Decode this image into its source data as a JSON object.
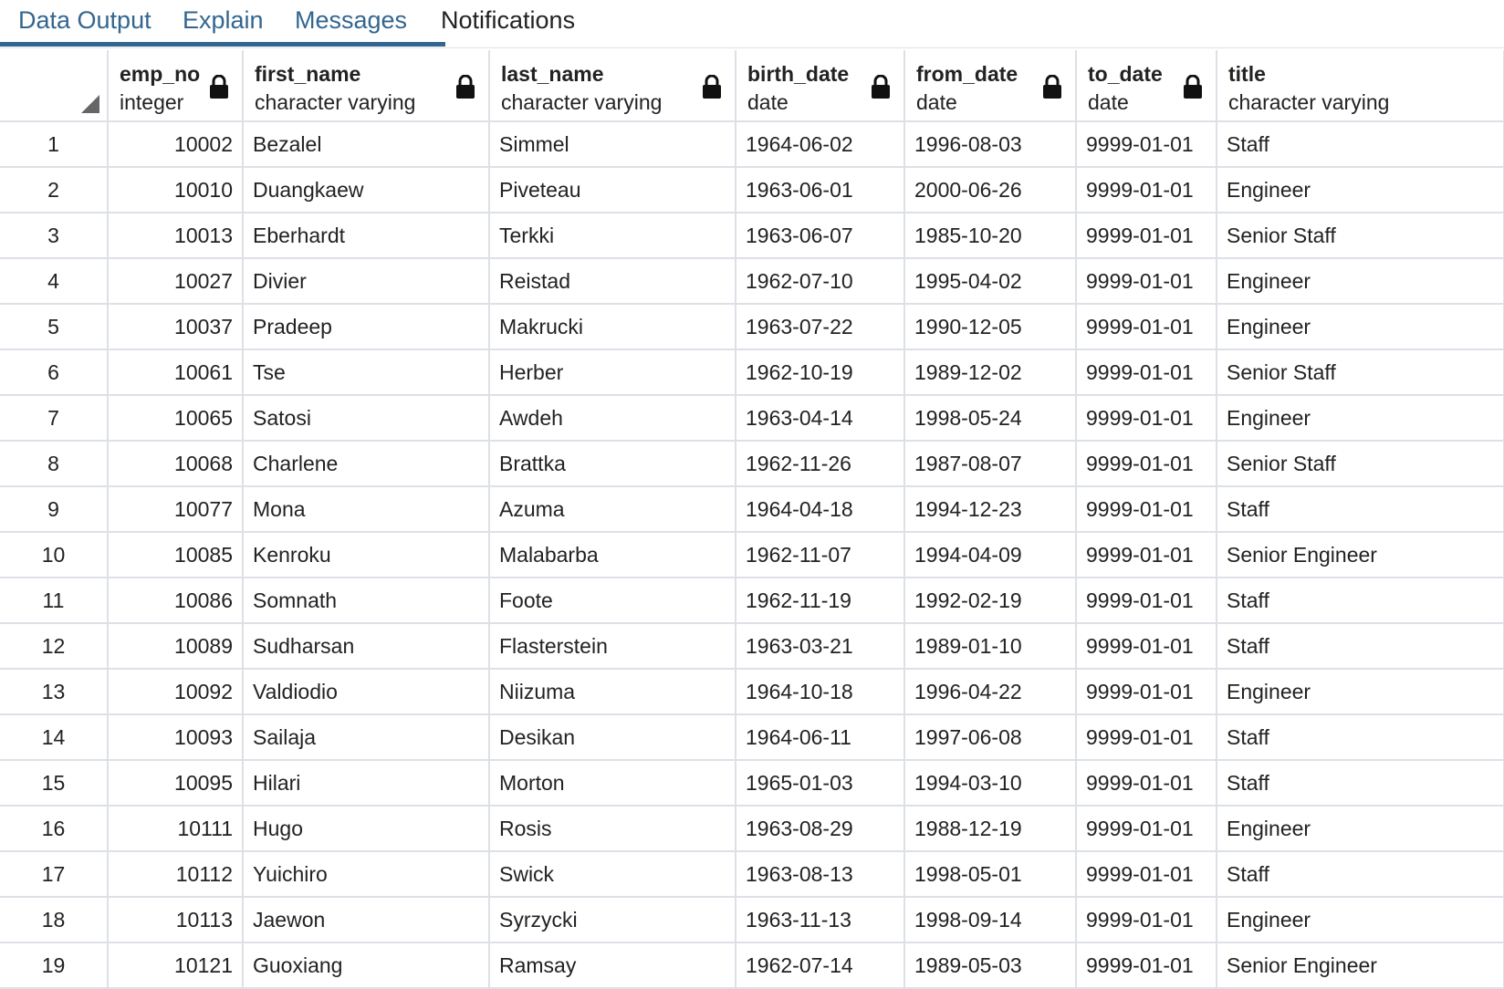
{
  "tabs": [
    {
      "label": "Data Output"
    },
    {
      "label": "Explain"
    },
    {
      "label": "Messages"
    },
    {
      "label": "Notifications"
    }
  ],
  "columns": [
    {
      "name": "emp_no",
      "type": "integer"
    },
    {
      "name": "first_name",
      "type": "character varying"
    },
    {
      "name": "last_name",
      "type": "character varying"
    },
    {
      "name": "birth_date",
      "type": "date"
    },
    {
      "name": "from_date",
      "type": "date"
    },
    {
      "name": "to_date",
      "type": "date"
    },
    {
      "name": "title",
      "type": "character varying"
    }
  ],
  "icons": {
    "lock": "lock-icon",
    "corner": "resize-corner-icon"
  },
  "colors": {
    "accent": "#326690",
    "grid_line": "#dde0e6"
  },
  "rows": [
    {
      "n": "1",
      "cells": [
        "10002",
        "Bezalel",
        "Simmel",
        "1964-06-02",
        "1996-08-03",
        "9999-01-01",
        "Staff"
      ]
    },
    {
      "n": "2",
      "cells": [
        "10010",
        "Duangkaew",
        "Piveteau",
        "1963-06-01",
        "2000-06-26",
        "9999-01-01",
        "Engineer"
      ]
    },
    {
      "n": "3",
      "cells": [
        "10013",
        "Eberhardt",
        "Terkki",
        "1963-06-07",
        "1985-10-20",
        "9999-01-01",
        "Senior Staff"
      ]
    },
    {
      "n": "4",
      "cells": [
        "10027",
        "Divier",
        "Reistad",
        "1962-07-10",
        "1995-04-02",
        "9999-01-01",
        "Engineer"
      ]
    },
    {
      "n": "5",
      "cells": [
        "10037",
        "Pradeep",
        "Makrucki",
        "1963-07-22",
        "1990-12-05",
        "9999-01-01",
        "Engineer"
      ]
    },
    {
      "n": "6",
      "cells": [
        "10061",
        "Tse",
        "Herber",
        "1962-10-19",
        "1989-12-02",
        "9999-01-01",
        "Senior Staff"
      ]
    },
    {
      "n": "7",
      "cells": [
        "10065",
        "Satosi",
        "Awdeh",
        "1963-04-14",
        "1998-05-24",
        "9999-01-01",
        "Engineer"
      ]
    },
    {
      "n": "8",
      "cells": [
        "10068",
        "Charlene",
        "Brattka",
        "1962-11-26",
        "1987-08-07",
        "9999-01-01",
        "Senior Staff"
      ]
    },
    {
      "n": "9",
      "cells": [
        "10077",
        "Mona",
        "Azuma",
        "1964-04-18",
        "1994-12-23",
        "9999-01-01",
        "Staff"
      ]
    },
    {
      "n": "10",
      "cells": [
        "10085",
        "Kenroku",
        "Malabarba",
        "1962-11-07",
        "1994-04-09",
        "9999-01-01",
        "Senior Engineer"
      ]
    },
    {
      "n": "11",
      "cells": [
        "10086",
        "Somnath",
        "Foote",
        "1962-11-19",
        "1992-02-19",
        "9999-01-01",
        "Staff"
      ]
    },
    {
      "n": "12",
      "cells": [
        "10089",
        "Sudharsan",
        "Flasterstein",
        "1963-03-21",
        "1989-01-10",
        "9999-01-01",
        "Staff"
      ]
    },
    {
      "n": "13",
      "cells": [
        "10092",
        "Valdiodio",
        "Niizuma",
        "1964-10-18",
        "1996-04-22",
        "9999-01-01",
        "Engineer"
      ]
    },
    {
      "n": "14",
      "cells": [
        "10093",
        "Sailaja",
        "Desikan",
        "1964-06-11",
        "1997-06-08",
        "9999-01-01",
        "Staff"
      ]
    },
    {
      "n": "15",
      "cells": [
        "10095",
        "Hilari",
        "Morton",
        "1965-01-03",
        "1994-03-10",
        "9999-01-01",
        "Staff"
      ]
    },
    {
      "n": "16",
      "cells": [
        "10111",
        "Hugo",
        "Rosis",
        "1963-08-29",
        "1988-12-19",
        "9999-01-01",
        "Engineer"
      ]
    },
    {
      "n": "17",
      "cells": [
        "10112",
        "Yuichiro",
        "Swick",
        "1963-08-13",
        "1998-05-01",
        "9999-01-01",
        "Staff"
      ]
    },
    {
      "n": "18",
      "cells": [
        "10113",
        "Jaewon",
        "Syrzycki",
        "1963-11-13",
        "1998-09-14",
        "9999-01-01",
        "Engineer"
      ]
    },
    {
      "n": "19",
      "cells": [
        "10121",
        "Guoxiang",
        "Ramsay",
        "1962-07-14",
        "1989-05-03",
        "9999-01-01",
        "Senior Engineer"
      ]
    }
  ]
}
